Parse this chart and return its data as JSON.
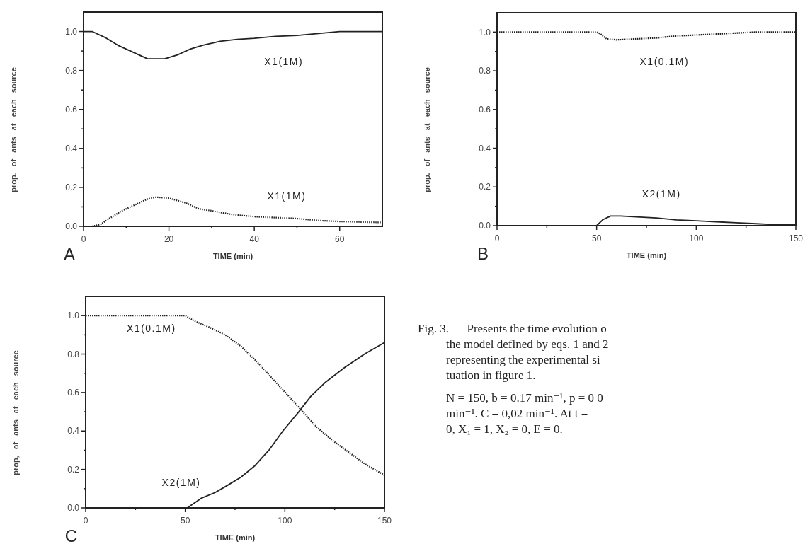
{
  "chart_data": [
    {
      "type": "line",
      "xlabel": "TIME (min)",
      "ylabel": "prop. of ants at each source",
      "xlim": [
        0,
        70
      ],
      "ylim": [
        0,
        1.1
      ],
      "xticks": [
        0,
        {
          "value": 10,
          "label": null
        },
        20,
        {
          "value": 30,
          "label": null
        },
        40,
        {
          "value": 50,
          "label": null
        },
        60
      ],
      "yticks": [
        {
          "value": 0,
          "label": "0.0"
        },
        {
          "value": 0.1,
          "label": null
        },
        {
          "value": 0.2,
          "label": "0.2"
        },
        {
          "value": 0.3,
          "label": null
        },
        {
          "value": 0.4,
          "label": "0.4"
        },
        {
          "value": 0.5,
          "label": null
        },
        {
          "value": 0.6,
          "label": "0.6"
        },
        {
          "value": 0.7,
          "label": null
        },
        {
          "value": 0.8,
          "label": "0.8"
        },
        {
          "value": 0.9,
          "label": null
        },
        {
          "value": 1,
          "label": "1.0"
        }
      ],
      "grid": false,
      "marker": "none",
      "series": [
        {
          "name": "X1(1M)",
          "color": "#222222",
          "line_style": "solid",
          "x": [
            0,
            2,
            5,
            8,
            12,
            15,
            19,
            22,
            25,
            28,
            32,
            36,
            40,
            45,
            50,
            55,
            60,
            70
          ],
          "values": [
            1.0,
            1.0,
            0.97,
            0.93,
            0.89,
            0.86,
            0.86,
            0.88,
            0.91,
            0.93,
            0.95,
            0.96,
            0.965,
            0.975,
            0.98,
            0.99,
            1.0,
            1.0
          ]
        },
        {
          "name": "X1(1M)",
          "color": "#222222",
          "line_style": "dotted",
          "x": [
            0,
            2,
            4,
            6,
            9,
            12,
            15,
            17,
            20,
            24,
            27,
            30,
            35,
            40,
            45,
            50,
            55,
            60,
            70
          ],
          "values": [
            0,
            0,
            0.01,
            0.04,
            0.08,
            0.11,
            0.14,
            0.15,
            0.145,
            0.12,
            0.09,
            0.08,
            0.06,
            0.05,
            0.045,
            0.04,
            0.03,
            0.025,
            0.02
          ]
        }
      ],
      "annotations": [
        "A"
      ]
    },
    {
      "type": "line",
      "xlabel": "TIME (min)",
      "ylabel": "prop. of ants at each source",
      "xlim": [
        0,
        150
      ],
      "ylim": [
        0,
        1.1
      ],
      "xticks": [
        0,
        {
          "value": 25,
          "label": null
        },
        50,
        {
          "value": 75,
          "label": null
        },
        100,
        {
          "value": 125,
          "label": null
        },
        150
      ],
      "yticks": [
        {
          "value": 0,
          "label": "0.0"
        },
        {
          "value": 0.1,
          "label": null
        },
        {
          "value": 0.2,
          "label": "0.2"
        },
        {
          "value": 0.3,
          "label": null
        },
        {
          "value": 0.4,
          "label": "0.4"
        },
        {
          "value": 0.5,
          "label": null
        },
        {
          "value": 0.6,
          "label": "0.6"
        },
        {
          "value": 0.7,
          "label": null
        },
        {
          "value": 0.8,
          "label": "0.8"
        },
        {
          "value": 0.9,
          "label": null
        },
        {
          "value": 1,
          "label": "1.0"
        }
      ],
      "grid": false,
      "marker": "none",
      "series": [
        {
          "name": "X1(0.1M)",
          "color": "#222222",
          "line_style": "dotted",
          "x": [
            0,
            50,
            52,
            55,
            60,
            70,
            80,
            90,
            100,
            110,
            120,
            130,
            150
          ],
          "values": [
            1.0,
            1.0,
            0.99,
            0.965,
            0.96,
            0.965,
            0.97,
            0.98,
            0.985,
            0.99,
            0.995,
            1.0,
            1.0
          ]
        },
        {
          "name": "X2(1M)",
          "color": "#222222",
          "line_style": "solid",
          "x": [
            0,
            50,
            53,
            57,
            62,
            70,
            80,
            90,
            100,
            110,
            120,
            130,
            140,
            150
          ],
          "values": [
            0,
            0,
            0.03,
            0.05,
            0.05,
            0.045,
            0.04,
            0.03,
            0.025,
            0.02,
            0.015,
            0.01,
            0.005,
            0.005
          ]
        }
      ],
      "annotations": [
        "B"
      ]
    },
    {
      "type": "line",
      "xlabel": "TIME (min)",
      "ylabel": "prop, of ants at each source",
      "xlim": [
        0,
        150
      ],
      "ylim": [
        0,
        1.1
      ],
      "xticks": [
        0,
        {
          "value": 25,
          "label": null
        },
        50,
        {
          "value": 75,
          "label": null
        },
        100,
        {
          "value": 125,
          "label": null
        },
        150
      ],
      "yticks": [
        {
          "value": 0,
          "label": "0.0"
        },
        {
          "value": 0.1,
          "label": null
        },
        {
          "value": 0.2,
          "label": "0.2"
        },
        {
          "value": 0.3,
          "label": null
        },
        {
          "value": 0.4,
          "label": "0.4"
        },
        {
          "value": 0.5,
          "label": null
        },
        {
          "value": 0.6,
          "label": "0.6"
        },
        {
          "value": 0.7,
          "label": null
        },
        {
          "value": 0.8,
          "label": "0.8"
        },
        {
          "value": 0.9,
          "label": null
        },
        {
          "value": 1,
          "label": "1.0"
        }
      ],
      "grid": false,
      "marker": "none",
      "series": [
        {
          "name": "X1(0.1M)",
          "color": "#222222",
          "line_style": "dotted",
          "x": [
            0,
            50,
            55,
            62,
            70,
            78,
            86,
            94,
            102,
            109,
            116,
            124,
            132,
            140,
            150
          ],
          "values": [
            1.0,
            1.0,
            0.97,
            0.94,
            0.9,
            0.84,
            0.76,
            0.67,
            0.58,
            0.5,
            0.42,
            0.35,
            0.29,
            0.23,
            0.17
          ]
        },
        {
          "name": "X2(1M)",
          "color": "#222222",
          "line_style": "solid",
          "x": [
            0,
            51,
            58,
            65,
            70,
            78,
            85,
            92,
            99,
            107,
            113,
            120,
            130,
            140,
            150
          ],
          "values": [
            0,
            0,
            0.05,
            0.08,
            0.11,
            0.16,
            0.22,
            0.3,
            0.4,
            0.5,
            0.58,
            0.65,
            0.73,
            0.8,
            0.86
          ]
        }
      ],
      "annotations": [
        "C"
      ]
    },
    {
      "type": "other",
      "annotations": [
        "Fig. 3. — Presents the time evolution o",
        "the model defined by eqs. 1 and 2",
        "representing the experimental si",
        "tuation in figure 1.",
        "N = 150, b = 0.17 min⁻¹, p = 0 0",
        "min⁻¹. C = 0,02 min⁻¹. At t =",
        "0, X₁ = 1, X₂ = 0, E = 0."
      ]
    }
  ]
}
